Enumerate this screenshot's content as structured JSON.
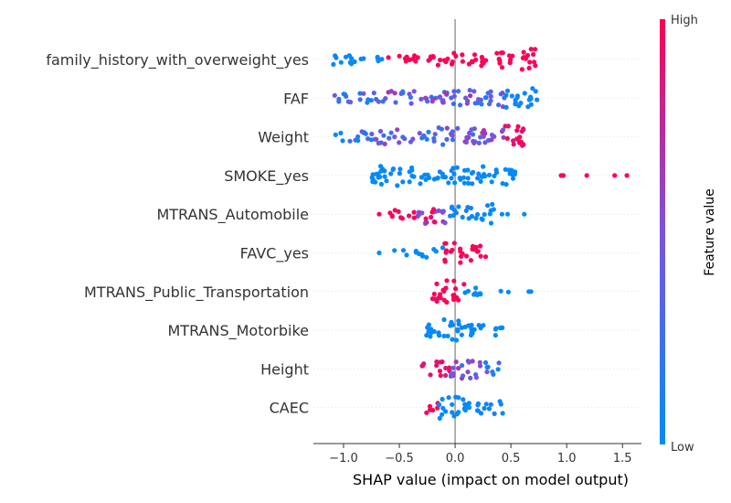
{
  "chart_data": {
    "type": "scatter",
    "subtype": "shap-beeswarm",
    "title": "",
    "xlabel": "SHAP value (impact on model output)",
    "xlim": [
      -1.27,
      1.67
    ],
    "xticks": [
      -1.0,
      -0.5,
      0.0,
      0.5,
      1.0,
      1.5
    ],
    "xtick_labels": [
      "−1.0",
      "−0.5",
      "0.0",
      "0.5",
      "1.0",
      "1.5"
    ],
    "zero_line": 0.0,
    "grid": false,
    "colorbar": {
      "title": "Feature value",
      "high_label": "High",
      "low_label": "Low",
      "low_color": "#008bfb",
      "mid_color": "#7c52e0",
      "high_color": "#ff0052"
    },
    "features": [
      {
        "name": "family_history_with_overweight_yes",
        "segments": [
          [
            -1.13,
            -0.9,
            0.0,
            7
          ],
          [
            -0.9,
            -0.65,
            0.0,
            4
          ],
          [
            -0.6,
            -0.2,
            1.0,
            5
          ],
          [
            -0.2,
            0.35,
            1.0,
            7
          ],
          [
            0.35,
            0.55,
            1.0,
            9
          ],
          [
            0.55,
            0.72,
            1.0,
            12
          ]
        ],
        "outliers": []
      },
      {
        "name": "FAF",
        "segments": [
          [
            -1.1,
            -0.6,
            0.25,
            6
          ],
          [
            -0.6,
            -0.1,
            0.4,
            8
          ],
          [
            -0.1,
            0.2,
            0.45,
            9
          ],
          [
            0.2,
            0.45,
            0.3,
            10
          ],
          [
            0.45,
            0.74,
            0.05,
            11
          ]
        ],
        "outliers": []
      },
      {
        "name": "Weight",
        "segments": [
          [
            -1.08,
            -0.75,
            0.15,
            6
          ],
          [
            -0.75,
            -0.5,
            0.35,
            8
          ],
          [
            -0.5,
            -0.15,
            0.25,
            6
          ],
          [
            -0.15,
            0.2,
            0.35,
            10
          ],
          [
            0.2,
            0.45,
            0.6,
            9
          ],
          [
            0.45,
            0.67,
            0.95,
            12
          ]
        ],
        "outliers": []
      },
      {
        "name": "SMOKE_yes",
        "segments": [
          [
            -0.75,
            -0.45,
            0.0,
            12
          ],
          [
            -0.45,
            0.1,
            0.0,
            9
          ],
          [
            0.1,
            0.35,
            0.0,
            10
          ],
          [
            0.35,
            0.55,
            0.0,
            12
          ]
        ],
        "outliers": [
          [
            0.95,
            1.0
          ],
          [
            0.97,
            1.0
          ],
          [
            1.18,
            1.0
          ],
          [
            1.43,
            1.0
          ],
          [
            1.54,
            1.0
          ]
        ]
      },
      {
        "name": "MTRANS_Automobile",
        "segments": [
          [
            -0.65,
            -0.35,
            1.0,
            5
          ],
          [
            -0.35,
            -0.05,
            0.7,
            11
          ],
          [
            -0.05,
            0.2,
            0.05,
            9
          ],
          [
            0.2,
            0.35,
            0.0,
            11
          ]
        ],
        "outliers": [
          [
            -0.68,
            1.0
          ],
          [
            0.42,
            0.0
          ],
          [
            0.47,
            0.0
          ],
          [
            0.62,
            0.0
          ]
        ]
      },
      {
        "name": "FAVC_yes",
        "segments": [
          [
            -0.6,
            -0.3,
            0.0,
            3
          ],
          [
            -0.3,
            -0.1,
            0.0,
            6
          ],
          [
            -0.12,
            0.08,
            1.0,
            11
          ],
          [
            0.08,
            0.28,
            1.0,
            9
          ]
        ],
        "outliers": [
          [
            -0.68,
            0.0
          ]
        ]
      },
      {
        "name": "MTRANS_Public_Transportation",
        "segments": [
          [
            -0.22,
            0.08,
            1.0,
            12
          ],
          [
            0.08,
            0.48,
            0.0,
            4
          ]
        ],
        "outliers": [
          [
            0.66,
            0.0
          ],
          [
            0.68,
            0.0
          ]
        ]
      },
      {
        "name": "MTRANS_Motorbike",
        "segments": [
          [
            -0.35,
            -0.1,
            0.0,
            7
          ],
          [
            -0.1,
            0.1,
            0.0,
            12
          ],
          [
            0.1,
            0.45,
            0.0,
            7
          ]
        ],
        "outliers": []
      },
      {
        "name": "Height",
        "segments": [
          [
            -0.33,
            -0.05,
            0.9,
            8
          ],
          [
            -0.05,
            0.2,
            0.5,
            11
          ],
          [
            0.2,
            0.42,
            0.3,
            7
          ]
        ],
        "outliers": []
      },
      {
        "name": "CAEC",
        "segments": [
          [
            -0.3,
            -0.15,
            1.0,
            6
          ],
          [
            -0.15,
            0.1,
            0.0,
            12
          ],
          [
            0.1,
            0.45,
            0.05,
            7
          ]
        ],
        "outliers": []
      }
    ]
  }
}
